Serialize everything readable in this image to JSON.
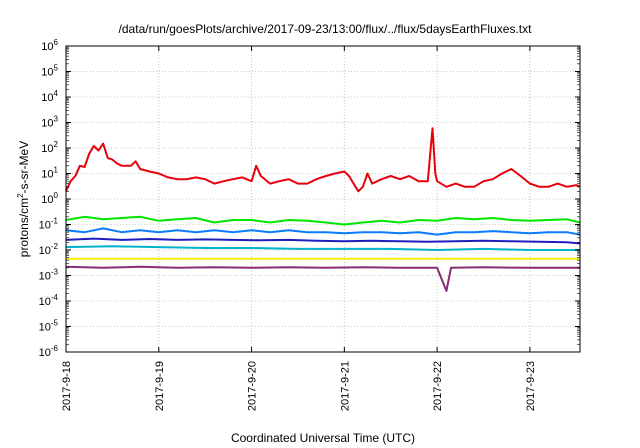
{
  "chart_data": {
    "type": "line",
    "title": "/data/run/goesPlots/archive/2017-09-23/13:00/flux/../flux/5daysEarthFluxes.txt",
    "xlabel": "Coordinated Universal Time (UTC)",
    "ylabel": "protons/cm2-s-sr-MeV",
    "ylabel_parts": {
      "pre": "protons/cm",
      "sup": "2",
      "post": "-s-sr-MeV"
    },
    "yscale": "log",
    "ylim": [
      1e-06,
      1000000.0
    ],
    "y_ticks": [
      {
        "exp": "-6",
        "value": 1e-06
      },
      {
        "exp": "-5",
        "value": 1e-05
      },
      {
        "exp": "-4",
        "value": 0.0001
      },
      {
        "exp": "-3",
        "value": 0.001
      },
      {
        "exp": "-2",
        "value": 0.01
      },
      {
        "exp": "-1",
        "value": 0.1
      },
      {
        "exp": "0",
        "value": 1
      },
      {
        "exp": "1",
        "value": 10
      },
      {
        "exp": "2",
        "value": 100
      },
      {
        "exp": "3",
        "value": 1000
      },
      {
        "exp": "4",
        "value": 10000
      },
      {
        "exp": "5",
        "value": 100000
      },
      {
        "exp": "6",
        "value": 1000000
      }
    ],
    "y_tick_base": "10",
    "xlim": [
      "2017-09-18",
      "2017-09-23 13:00"
    ],
    "x_ticks": [
      {
        "label": "2017-9-18",
        "day": 0
      },
      {
        "label": "2017-9-19",
        "day": 1
      },
      {
        "label": "2017-9-20",
        "day": 2
      },
      {
        "label": "2017-9-21",
        "day": 3
      },
      {
        "label": "2017-9-22",
        "day": 4
      },
      {
        "label": "2017-9-23",
        "day": 5
      }
    ],
    "x_units": "days after 2017-9-18 00:00",
    "grid": true,
    "series": [
      {
        "color": "#e8000b",
        "points": [
          [
            0,
            2
          ],
          [
            0.05,
            5
          ],
          [
            0.1,
            8
          ],
          [
            0.15,
            20
          ],
          [
            0.2,
            18
          ],
          [
            0.25,
            60
          ],
          [
            0.3,
            120
          ],
          [
            0.35,
            80
          ],
          [
            0.4,
            150
          ],
          [
            0.45,
            40
          ],
          [
            0.5,
            35
          ],
          [
            0.55,
            25
          ],
          [
            0.6,
            20
          ],
          [
            0.7,
            20
          ],
          [
            0.75,
            30
          ],
          [
            0.8,
            15
          ],
          [
            0.9,
            12
          ],
          [
            1.0,
            10
          ],
          [
            1.1,
            7
          ],
          [
            1.2,
            6
          ],
          [
            1.3,
            6
          ],
          [
            1.4,
            7
          ],
          [
            1.5,
            6
          ],
          [
            1.6,
            4
          ],
          [
            1.7,
            5
          ],
          [
            1.8,
            6
          ],
          [
            1.9,
            7
          ],
          [
            2.0,
            5
          ],
          [
            2.05,
            20
          ],
          [
            2.1,
            8
          ],
          [
            2.2,
            4
          ],
          [
            2.3,
            5
          ],
          [
            2.4,
            6
          ],
          [
            2.5,
            4
          ],
          [
            2.6,
            4
          ],
          [
            2.7,
            6
          ],
          [
            2.8,
            8
          ],
          [
            2.9,
            10
          ],
          [
            3.0,
            12
          ],
          [
            3.05,
            8
          ],
          [
            3.1,
            4
          ],
          [
            3.15,
            2
          ],
          [
            3.2,
            3
          ],
          [
            3.25,
            10
          ],
          [
            3.3,
            4
          ],
          [
            3.4,
            6
          ],
          [
            3.5,
            8
          ],
          [
            3.6,
            6
          ],
          [
            3.7,
            8
          ],
          [
            3.8,
            5
          ],
          [
            3.9,
            5
          ],
          [
            3.95,
            600
          ],
          [
            3.98,
            10
          ],
          [
            4.0,
            5
          ],
          [
            4.1,
            3
          ],
          [
            4.2,
            4
          ],
          [
            4.3,
            3
          ],
          [
            4.4,
            3
          ],
          [
            4.5,
            5
          ],
          [
            4.6,
            6
          ],
          [
            4.7,
            10
          ],
          [
            4.8,
            15
          ],
          [
            4.9,
            8
          ],
          [
            5.0,
            4
          ],
          [
            5.1,
            3
          ],
          [
            5.2,
            3
          ],
          [
            5.3,
            4
          ],
          [
            5.4,
            3
          ],
          [
            5.5,
            3.5
          ],
          [
            5.54,
            3
          ]
        ]
      },
      {
        "color": "#00e600",
        "points": [
          [
            0,
            0.15
          ],
          [
            0.2,
            0.2
          ],
          [
            0.4,
            0.16
          ],
          [
            0.6,
            0.18
          ],
          [
            0.8,
            0.2
          ],
          [
            1.0,
            0.14
          ],
          [
            1.2,
            0.16
          ],
          [
            1.4,
            0.18
          ],
          [
            1.6,
            0.12
          ],
          [
            1.8,
            0.15
          ],
          [
            2.0,
            0.15
          ],
          [
            2.2,
            0.12
          ],
          [
            2.4,
            0.15
          ],
          [
            2.6,
            0.14
          ],
          [
            2.8,
            0.12
          ],
          [
            3.0,
            0.1
          ],
          [
            3.2,
            0.12
          ],
          [
            3.4,
            0.14
          ],
          [
            3.6,
            0.12
          ],
          [
            3.8,
            0.15
          ],
          [
            4.0,
            0.14
          ],
          [
            4.2,
            0.18
          ],
          [
            4.4,
            0.16
          ],
          [
            4.6,
            0.18
          ],
          [
            4.8,
            0.15
          ],
          [
            5.0,
            0.14
          ],
          [
            5.2,
            0.15
          ],
          [
            5.4,
            0.16
          ],
          [
            5.54,
            0.12
          ]
        ]
      },
      {
        "color": "#0a7cff",
        "points": [
          [
            0,
            0.06
          ],
          [
            0.2,
            0.05
          ],
          [
            0.4,
            0.07
          ],
          [
            0.6,
            0.05
          ],
          [
            0.8,
            0.06
          ],
          [
            1.0,
            0.05
          ],
          [
            1.2,
            0.06
          ],
          [
            1.4,
            0.05
          ],
          [
            1.6,
            0.06
          ],
          [
            1.8,
            0.05
          ],
          [
            2.0,
            0.06
          ],
          [
            2.2,
            0.05
          ],
          [
            2.4,
            0.06
          ],
          [
            2.6,
            0.05
          ],
          [
            2.8,
            0.05
          ],
          [
            3.0,
            0.045
          ],
          [
            3.2,
            0.05
          ],
          [
            3.4,
            0.05
          ],
          [
            3.6,
            0.045
          ],
          [
            3.8,
            0.05
          ],
          [
            4.0,
            0.04
          ],
          [
            4.2,
            0.05
          ],
          [
            4.4,
            0.05
          ],
          [
            4.6,
            0.055
          ],
          [
            4.8,
            0.05
          ],
          [
            5.0,
            0.045
          ],
          [
            5.2,
            0.05
          ],
          [
            5.4,
            0.05
          ],
          [
            5.54,
            0.04
          ]
        ]
      },
      {
        "color": "#1e1ebe",
        "points": [
          [
            0,
            0.025
          ],
          [
            0.3,
            0.028
          ],
          [
            0.6,
            0.025
          ],
          [
            0.9,
            0.027
          ],
          [
            1.2,
            0.025
          ],
          [
            1.5,
            0.026
          ],
          [
            1.8,
            0.025
          ],
          [
            2.1,
            0.024
          ],
          [
            2.4,
            0.025
          ],
          [
            2.7,
            0.023
          ],
          [
            3.0,
            0.022
          ],
          [
            3.3,
            0.023
          ],
          [
            3.6,
            0.022
          ],
          [
            3.9,
            0.021
          ],
          [
            4.2,
            0.022
          ],
          [
            4.5,
            0.023
          ],
          [
            4.8,
            0.022
          ],
          [
            5.1,
            0.021
          ],
          [
            5.4,
            0.02
          ],
          [
            5.54,
            0.018
          ]
        ]
      },
      {
        "color": "#00b4c8",
        "points": [
          [
            0,
            0.013
          ],
          [
            0.5,
            0.014
          ],
          [
            1.0,
            0.013
          ],
          [
            1.5,
            0.012
          ],
          [
            2.0,
            0.012
          ],
          [
            2.5,
            0.011
          ],
          [
            3.0,
            0.011
          ],
          [
            3.5,
            0.011
          ],
          [
            4.0,
            0.01
          ],
          [
            4.5,
            0.011
          ],
          [
            5.0,
            0.01
          ],
          [
            5.54,
            0.01
          ]
        ]
      },
      {
        "color": "#f0f000",
        "points": [
          [
            0,
            0.0045
          ],
          [
            1.0,
            0.0045
          ],
          [
            2.0,
            0.0045
          ],
          [
            3.0,
            0.0045
          ],
          [
            4.0,
            0.0045
          ],
          [
            5.0,
            0.0045
          ],
          [
            5.54,
            0.0045
          ]
        ]
      },
      {
        "color": "#8b2a75",
        "points": [
          [
            0,
            0.0022
          ],
          [
            0.4,
            0.002
          ],
          [
            0.8,
            0.0022
          ],
          [
            1.2,
            0.002
          ],
          [
            1.6,
            0.0021
          ],
          [
            2.0,
            0.002
          ],
          [
            2.4,
            0.0021
          ],
          [
            2.8,
            0.002
          ],
          [
            3.2,
            0.0021
          ],
          [
            3.6,
            0.002
          ],
          [
            4.0,
            0.002
          ],
          [
            4.1,
            0.00025
          ],
          [
            4.15,
            0.002
          ],
          [
            4.5,
            0.0021
          ],
          [
            5.0,
            0.002
          ],
          [
            5.54,
            0.002
          ]
        ]
      }
    ]
  }
}
